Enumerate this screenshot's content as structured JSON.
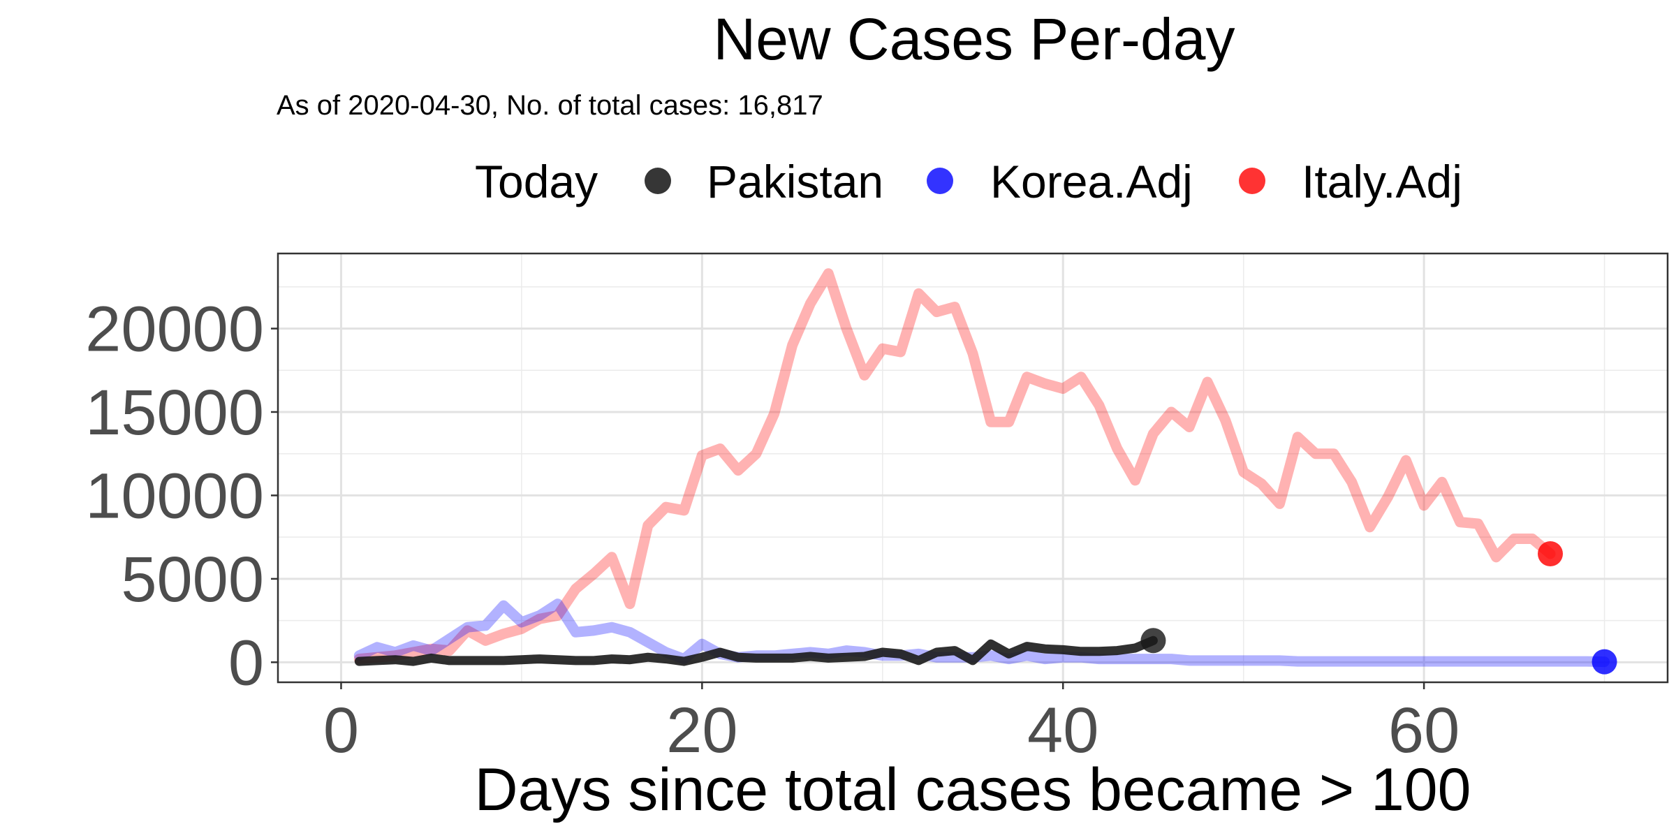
{
  "chart_data": {
    "type": "line",
    "title": "New Cases Per-day",
    "subtitle": "As of 2020-04-30, No. of total cases: 16,817",
    "xlabel": "Days since total cases became > 100",
    "ylabel": "",
    "xlim": [
      -3.5,
      73.5
    ],
    "ylim": [
      -1200,
      24500
    ],
    "x_ticks": [
      0,
      20,
      40,
      60
    ],
    "y_ticks": [
      0,
      5000,
      10000,
      15000,
      20000
    ],
    "grid": true,
    "legend": {
      "position": "top",
      "title": "Today",
      "entries": [
        "Pakistan",
        "Korea.Adj",
        "Italy.Adj"
      ]
    },
    "series": [
      {
        "name": "Pakistan",
        "color": "#1a1a1a",
        "x": [
          1,
          2,
          3,
          4,
          5,
          6,
          7,
          8,
          9,
          10,
          11,
          12,
          13,
          14,
          15,
          16,
          17,
          18,
          19,
          20,
          21,
          22,
          23,
          24,
          25,
          26,
          27,
          28,
          29,
          30,
          31,
          32,
          33,
          34,
          35,
          36,
          37,
          38,
          39,
          40,
          41,
          42,
          43,
          44,
          45
        ],
        "values": [
          50,
          100,
          150,
          50,
          250,
          100,
          100,
          100,
          100,
          150,
          200,
          150,
          100,
          100,
          200,
          150,
          300,
          200,
          50,
          300,
          600,
          300,
          250,
          250,
          250,
          350,
          250,
          300,
          350,
          600,
          500,
          100,
          600,
          700,
          100,
          1100,
          500,
          950,
          800,
          750,
          650,
          650,
          700,
          850,
          1300
        ]
      },
      {
        "name": "Korea.Adj",
        "color": "#0000ff",
        "x": [
          1,
          2,
          3,
          4,
          5,
          6,
          7,
          8,
          9,
          10,
          11,
          12,
          13,
          14,
          15,
          16,
          17,
          18,
          19,
          20,
          21,
          22,
          23,
          24,
          25,
          26,
          27,
          28,
          29,
          30,
          31,
          32,
          33,
          34,
          35,
          36,
          37,
          38,
          39,
          40,
          41,
          42,
          43,
          44,
          45,
          46,
          47,
          48,
          49,
          50,
          51,
          52,
          53,
          54,
          55,
          56,
          57,
          58,
          59,
          60,
          61,
          62,
          63,
          64,
          65,
          66,
          67,
          68,
          69,
          70
        ],
        "values": [
          400,
          900,
          600,
          1000,
          700,
          1400,
          2100,
          2200,
          3400,
          2400,
          2800,
          3500,
          1800,
          1900,
          2100,
          1800,
          1200,
          600,
          200,
          1100,
          500,
          300,
          400,
          400,
          500,
          600,
          500,
          700,
          600,
          400,
          400,
          500,
          300,
          300,
          300,
          400,
          200,
          400,
          200,
          300,
          300,
          200,
          200,
          200,
          200,
          200,
          100,
          100,
          100,
          100,
          100,
          100,
          50,
          50,
          50,
          50,
          50,
          50,
          50,
          50,
          50,
          50,
          50,
          50,
          50,
          50,
          50,
          50,
          50,
          30
        ]
      },
      {
        "name": "Italy.Adj",
        "color": "#ff0000",
        "x": [
          1,
          2,
          3,
          4,
          5,
          6,
          7,
          8,
          9,
          10,
          11,
          12,
          13,
          14,
          15,
          16,
          17,
          18,
          19,
          20,
          21,
          22,
          23,
          24,
          25,
          26,
          27,
          28,
          29,
          30,
          31,
          32,
          33,
          34,
          35,
          36,
          37,
          38,
          39,
          40,
          41,
          42,
          43,
          44,
          45,
          46,
          47,
          48,
          49,
          50,
          51,
          52,
          53,
          54,
          55,
          56,
          57,
          58,
          59,
          60,
          61,
          62,
          63,
          64,
          65,
          66,
          67
        ],
        "values": [
          200,
          300,
          400,
          600,
          800,
          700,
          1900,
          1300,
          1700,
          2000,
          2600,
          2800,
          4400,
          5300,
          6300,
          3500,
          8200,
          9300,
          9100,
          12400,
          12800,
          11500,
          12500,
          14900,
          19000,
          21500,
          23300,
          20000,
          17200,
          18800,
          18600,
          22100,
          21000,
          21300,
          18500,
          14400,
          14400,
          17100,
          16700,
          16400,
          17100,
          15400,
          12800,
          10900,
          13700,
          15000,
          14100,
          16800,
          14500,
          11400,
          10700,
          9500,
          13500,
          12500,
          12500,
          10800,
          8100,
          9900,
          12100,
          9400,
          10800,
          8400,
          8300,
          6300,
          7400,
          7400,
          6500
        ]
      }
    ],
    "endpoints": [
      {
        "series": "Pakistan",
        "x": 45,
        "y": 1300
      },
      {
        "series": "Korea.Adj",
        "x": 70,
        "y": 30
      },
      {
        "series": "Italy.Adj",
        "x": 67,
        "y": 6500
      }
    ]
  }
}
